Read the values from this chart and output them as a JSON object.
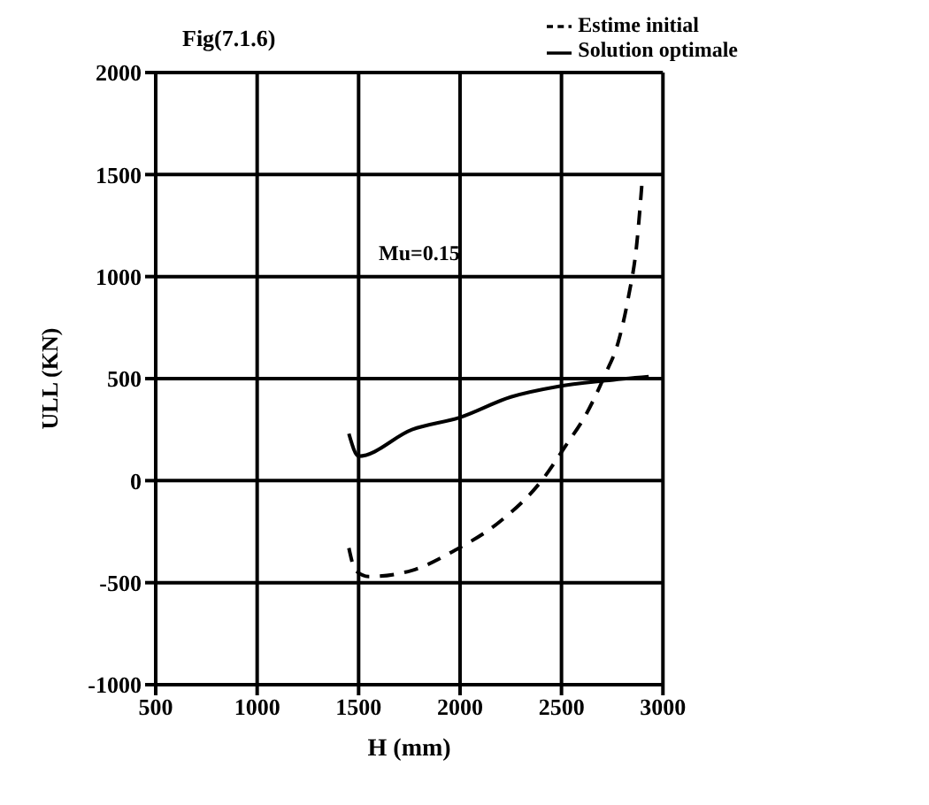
{
  "chart_data": {
    "type": "line",
    "title": "Fig(7.1.6)",
    "xlabel": "H (mm)",
    "ylabel": "ULL (KN)",
    "annotations": [
      "Mu=0.15"
    ],
    "xlim": [
      500,
      3000
    ],
    "xticks": [
      500,
      1000,
      1500,
      2000,
      2500,
      3000
    ],
    "ylim": [
      -1000,
      2000
    ],
    "yticks": [
      -1000,
      -500,
      0,
      500,
      1000,
      1500,
      2000
    ],
    "grid": true,
    "legend": "top right",
    "marker": "none",
    "series": [
      {
        "name": "Estime initial",
        "color": "#000000",
        "line_style": "dashed",
        "x": [
          1452,
          1485,
          1550,
          1763,
          1977,
          2197,
          2410,
          2520,
          2624,
          2715,
          2780,
          2830,
          2870,
          2900
        ],
        "values": [
          -330,
          -440,
          -470,
          -440,
          -340,
          -200,
          10,
          170,
          330,
          520,
          680,
          900,
          1150,
          1500
        ]
      },
      {
        "name": "Solution optimale",
        "color": "#000000",
        "line_style": "solid",
        "x": [
          1452,
          1500,
          1763,
          2000,
          2250,
          2475,
          2715,
          2930
        ],
        "values": [
          230,
          120,
          250,
          310,
          410,
          460,
          490,
          510
        ]
      }
    ]
  }
}
